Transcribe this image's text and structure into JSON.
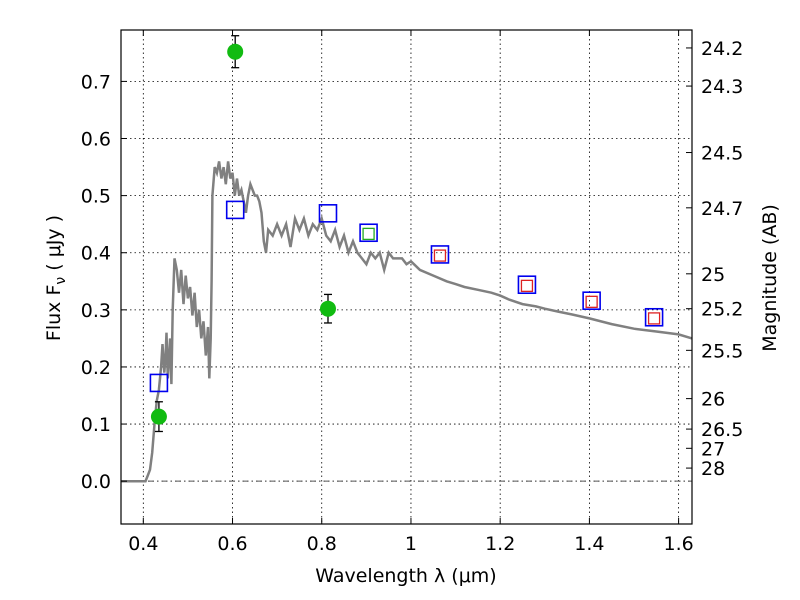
{
  "chart_data": {
    "type": "scatter",
    "xlabel": "Wavelength  λ (μm)",
    "ylabel": "Flux  F",
    "ylabel_sub": "ν",
    "ylabel_unit": "  ( μJy )",
    "y2label": "Magnitude (AB)",
    "xlim": [
      0.35,
      1.63
    ],
    "ylim": [
      -0.075,
      0.79
    ],
    "grid": true,
    "x_ticks": [
      0.4,
      0.6,
      0.8,
      1.0,
      1.2,
      1.4,
      1.6
    ],
    "x_tick_labels": [
      "0.4",
      "0.6",
      "0.8",
      "1",
      "1.2",
      "1.4",
      "1.6"
    ],
    "y_ticks": [
      0.0,
      0.1,
      0.2,
      0.3,
      0.4,
      0.5,
      0.6,
      0.7
    ],
    "y_tick_labels": [
      "0.0",
      "0.1",
      "0.2",
      "0.3",
      "0.4",
      "0.5",
      "0.6",
      "0.7"
    ],
    "mag_ticks": [
      "24.2",
      "24.3",
      "24.5",
      "24.7",
      "25",
      "25.2",
      "25.5",
      "26",
      "26.5",
      "27",
      "28"
    ],
    "colors": {
      "model": "#808080",
      "detection": "#11bb11",
      "model_phot": "#0000ee",
      "green_box": "#22aa22",
      "red_box": "#dd2222",
      "zero_line": "#555555"
    },
    "series": [
      {
        "name": "model spectrum",
        "kind": "line",
        "x": [
          0.35,
          0.405,
          0.41,
          0.415,
          0.42,
          0.425,
          0.43,
          0.435,
          0.44,
          0.443,
          0.447,
          0.45,
          0.452,
          0.455,
          0.46,
          0.463,
          0.466,
          0.47,
          0.475,
          0.48,
          0.485,
          0.49,
          0.495,
          0.5,
          0.505,
          0.51,
          0.515,
          0.52,
          0.525,
          0.53,
          0.535,
          0.54,
          0.545,
          0.548,
          0.551,
          0.553,
          0.555,
          0.56,
          0.565,
          0.57,
          0.575,
          0.58,
          0.585,
          0.59,
          0.595,
          0.6,
          0.605,
          0.61,
          0.615,
          0.62,
          0.625,
          0.63,
          0.635,
          0.64,
          0.645,
          0.65,
          0.655,
          0.66,
          0.665,
          0.67,
          0.675,
          0.68,
          0.69,
          0.7,
          0.71,
          0.72,
          0.73,
          0.74,
          0.75,
          0.76,
          0.77,
          0.78,
          0.79,
          0.8,
          0.81,
          0.82,
          0.83,
          0.84,
          0.85,
          0.86,
          0.87,
          0.88,
          0.89,
          0.9,
          0.91,
          0.92,
          0.93,
          0.94,
          0.95,
          0.96,
          0.97,
          0.98,
          0.99,
          1.0,
          1.02,
          1.05,
          1.08,
          1.1,
          1.12,
          1.15,
          1.18,
          1.2,
          1.22,
          1.25,
          1.28,
          1.3,
          1.33,
          1.36,
          1.4,
          1.45,
          1.5,
          1.55,
          1.6,
          1.63
        ],
        "y": [
          0.0,
          0.0,
          0.01,
          0.02,
          0.05,
          0.1,
          0.14,
          0.16,
          0.2,
          0.24,
          0.19,
          0.22,
          0.26,
          0.18,
          0.25,
          0.17,
          0.3,
          0.39,
          0.37,
          0.33,
          0.37,
          0.31,
          0.36,
          0.32,
          0.34,
          0.29,
          0.33,
          0.27,
          0.3,
          0.25,
          0.28,
          0.22,
          0.27,
          0.18,
          0.25,
          0.35,
          0.5,
          0.55,
          0.54,
          0.56,
          0.53,
          0.55,
          0.52,
          0.56,
          0.53,
          0.54,
          0.5,
          0.53,
          0.5,
          0.51,
          0.49,
          0.47,
          0.5,
          0.52,
          0.51,
          0.5,
          0.5,
          0.49,
          0.47,
          0.42,
          0.4,
          0.44,
          0.43,
          0.45,
          0.43,
          0.45,
          0.41,
          0.46,
          0.44,
          0.46,
          0.43,
          0.45,
          0.44,
          0.46,
          0.43,
          0.42,
          0.44,
          0.41,
          0.43,
          0.4,
          0.42,
          0.4,
          0.39,
          0.38,
          0.4,
          0.39,
          0.4,
          0.37,
          0.4,
          0.39,
          0.39,
          0.39,
          0.38,
          0.385,
          0.37,
          0.36,
          0.35,
          0.345,
          0.34,
          0.335,
          0.33,
          0.325,
          0.318,
          0.31,
          0.306,
          0.302,
          0.297,
          0.292,
          0.285,
          0.275,
          0.267,
          0.262,
          0.257,
          0.25
        ]
      },
      {
        "name": "observed photometry",
        "kind": "point_errorbar",
        "points": [
          {
            "x": 0.435,
            "y": 0.113,
            "err": 0.026
          },
          {
            "x": 0.606,
            "y": 0.752,
            "err": 0.028
          },
          {
            "x": 0.814,
            "y": 0.302,
            "err": 0.025
          }
        ]
      },
      {
        "name": "model photometry",
        "kind": "square",
        "points": [
          {
            "x": 0.435,
            "y": 0.172
          },
          {
            "x": 0.606,
            "y": 0.475
          },
          {
            "x": 0.814,
            "y": 0.469
          },
          {
            "x": 0.905,
            "y": 0.435
          },
          {
            "x": 1.065,
            "y": 0.397
          },
          {
            "x": 1.26,
            "y": 0.344
          },
          {
            "x": 1.405,
            "y": 0.316
          },
          {
            "x": 1.545,
            "y": 0.287
          }
        ]
      },
      {
        "name": "green inner squares",
        "kind": "square_inner",
        "points": [
          {
            "x": 0.905,
            "y": 0.433
          }
        ]
      },
      {
        "name": "red inner squares",
        "kind": "square_inner",
        "points": [
          {
            "x": 1.065,
            "y": 0.395
          },
          {
            "x": 1.26,
            "y": 0.342
          },
          {
            "x": 1.405,
            "y": 0.314
          },
          {
            "x": 1.545,
            "y": 0.285
          }
        ]
      }
    ]
  }
}
